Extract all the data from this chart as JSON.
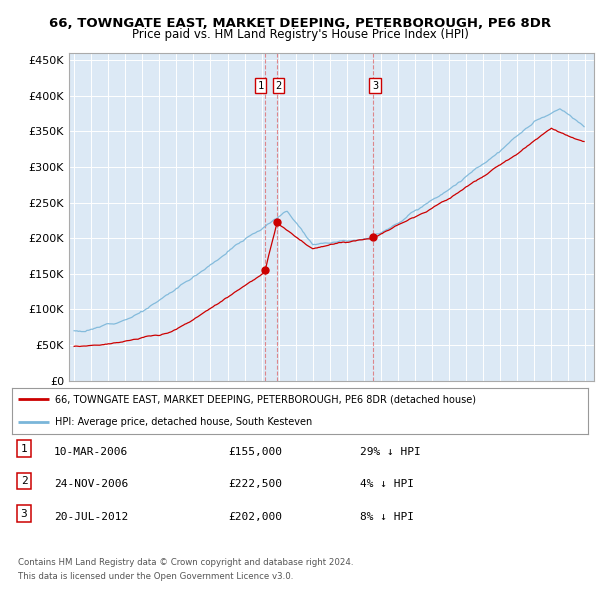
{
  "title": "66, TOWNGATE EAST, MARKET DEEPING, PETERBOROUGH, PE6 8DR",
  "subtitle": "Price paid vs. HM Land Registry's House Price Index (HPI)",
  "hpi_color": "#7ab6d9",
  "price_color": "#cc0000",
  "background_color": "#ffffff",
  "plot_bg_color": "#dce9f5",
  "grid_color": "#ffffff",
  "ylim": [
    0,
    460000
  ],
  "yticks": [
    0,
    50000,
    100000,
    150000,
    200000,
    250000,
    300000,
    350000,
    400000,
    450000
  ],
  "sale_dates_num": [
    2006.19,
    2006.9,
    2012.55
  ],
  "sale_prices": [
    155000,
    222500,
    202000
  ],
  "sale_labels": [
    "1",
    "2",
    "3"
  ],
  "legend_price_label": "66, TOWNGATE EAST, MARKET DEEPING, PETERBOROUGH, PE6 8DR (detached house)",
  "legend_hpi_label": "HPI: Average price, detached house, South Kesteven",
  "table_rows": [
    {
      "num": "1",
      "date": "10-MAR-2006",
      "price": "£155,000",
      "hpi": "29% ↓ HPI"
    },
    {
      "num": "2",
      "date": "24-NOV-2006",
      "price": "£222,500",
      "hpi": "4% ↓ HPI"
    },
    {
      "num": "3",
      "date": "20-JUL-2012",
      "price": "£202,000",
      "hpi": "8% ↓ HPI"
    }
  ],
  "footer1": "Contains HM Land Registry data © Crown copyright and database right 2024.",
  "footer2": "This data is licensed under the Open Government Licence v3.0."
}
